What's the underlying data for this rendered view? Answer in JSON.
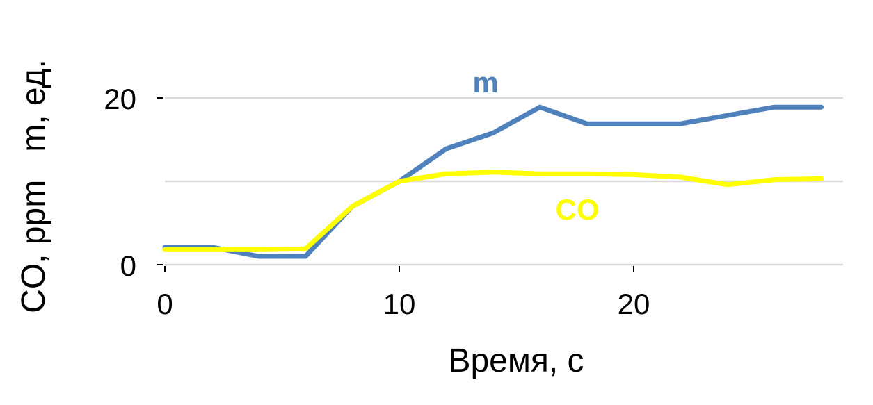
{
  "chart_data": {
    "type": "line",
    "xlabel": "Время, с",
    "ylabel": "CO, ppm   m, ед.",
    "xlim": [
      0,
      29
    ],
    "ylim": [
      0,
      20
    ],
    "xticks": [
      0,
      10,
      20
    ],
    "yticks": [
      0,
      20
    ],
    "ygrid": [
      0,
      10,
      20
    ],
    "grid": "horizontal",
    "legend": "inline labels",
    "series": [
      {
        "name": "m",
        "color": "#4f81bd",
        "x": [
          0,
          2,
          4,
          6,
          8,
          10,
          12,
          14,
          16,
          18,
          20,
          22,
          24,
          26,
          28
        ],
        "y": [
          2.1,
          2.1,
          1.0,
          1.0,
          7.0,
          10.0,
          13.9,
          15.8,
          18.9,
          16.9,
          16.9,
          16.9,
          17.9,
          18.9,
          18.9
        ]
      },
      {
        "name": "CO",
        "color": "#ffff00",
        "x": [
          0,
          2,
          4,
          6,
          8,
          10,
          12,
          14,
          16,
          18,
          20,
          22,
          24,
          26,
          28
        ],
        "y": [
          1.8,
          1.8,
          1.8,
          1.9,
          7.0,
          10.0,
          10.9,
          11.1,
          10.9,
          10.9,
          10.8,
          10.5,
          9.6,
          10.2,
          10.3
        ]
      }
    ]
  }
}
